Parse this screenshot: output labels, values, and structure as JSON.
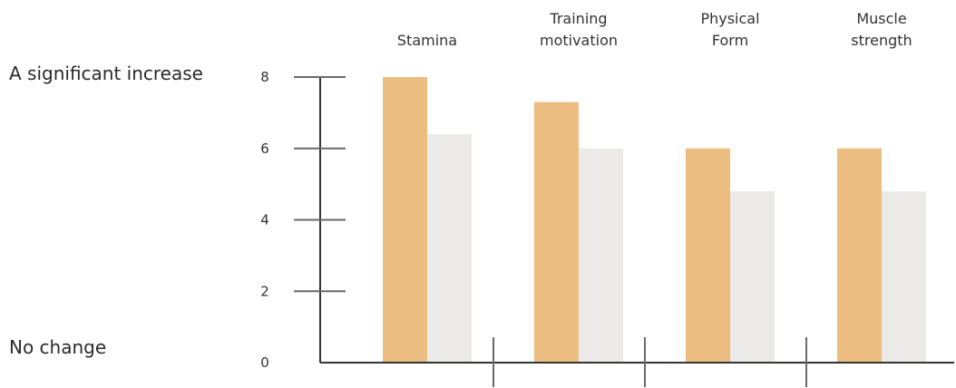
{
  "chart_data": {
    "type": "bar",
    "title": "",
    "xlabel": "",
    "ylabel": "",
    "ylim": [
      0,
      8
    ],
    "yticks": [
      "0",
      "2",
      "4",
      "6",
      "8"
    ],
    "scale_labels": {
      "top": "A significant increase",
      "bottom": "No change"
    },
    "categories": [
      [
        "Stamina"
      ],
      [
        "Training",
        "motivation"
      ],
      [
        "Physical",
        "Form"
      ],
      [
        "Muscle",
        "strength"
      ]
    ],
    "series": [
      {
        "values": [
          8,
          7.3,
          6,
          6
        ],
        "color": "#ebbd80"
      },
      {
        "values": [
          6.4,
          6,
          4.8,
          4.8
        ],
        "color": "#ebeae8"
      }
    ],
    "grid": false,
    "legend": "none",
    "colors": {
      "axis": "#333333",
      "tick": "#6a6a6a"
    }
  }
}
